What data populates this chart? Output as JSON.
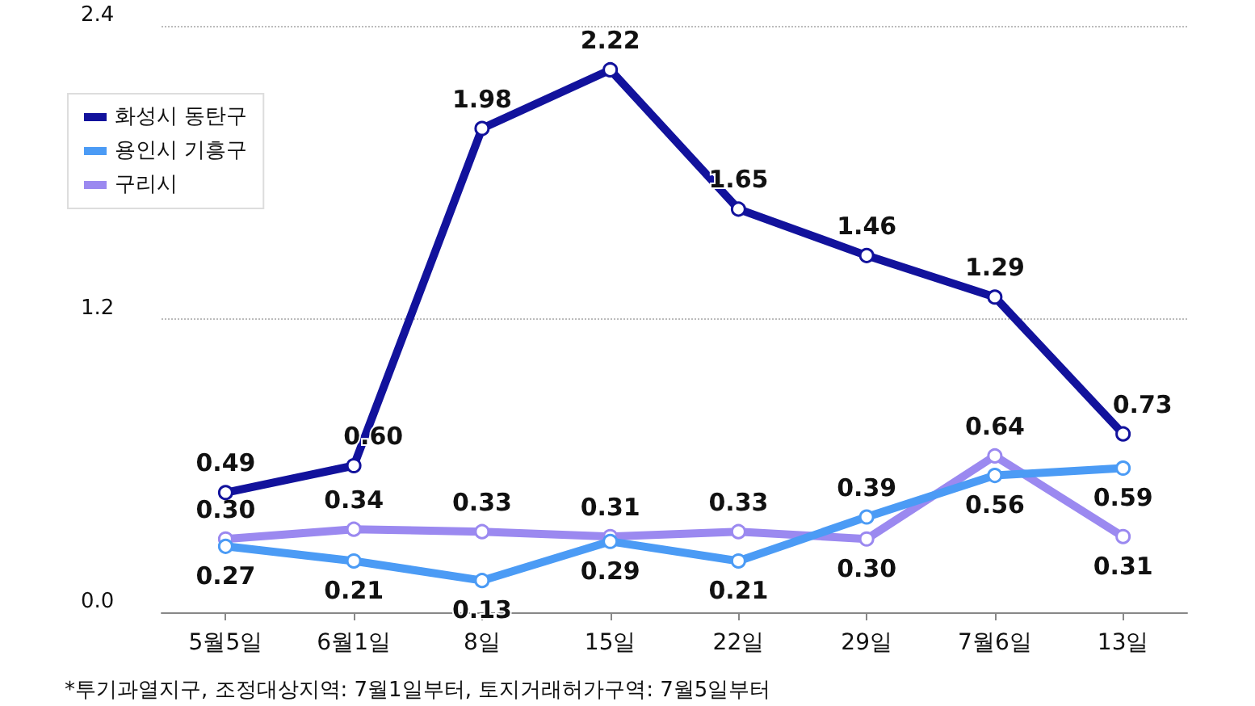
{
  "chart_data": {
    "type": "line",
    "categories": [
      "5월5일",
      "6월1일",
      "8일",
      "15일",
      "22일",
      "29일",
      "7월6일",
      "13일"
    ],
    "series": [
      {
        "name": "화성시 동탄구",
        "color": "#12129c",
        "values": [
          0.49,
          0.6,
          1.98,
          2.22,
          1.65,
          1.46,
          1.29,
          0.73
        ],
        "value_labels": [
          "0.49",
          "0.60",
          "1.98",
          "2.22",
          "1.65",
          "1.46",
          "1.29",
          "0.73"
        ]
      },
      {
        "name": "용인시 기흥구",
        "color": "#4b9bf5",
        "values": [
          0.27,
          0.21,
          0.13,
          0.29,
          0.21,
          0.39,
          0.56,
          0.59
        ],
        "value_labels": [
          "0.27",
          "0.21",
          "0.13",
          "0.29",
          "0.21",
          "0.39",
          "0.56",
          "0.59"
        ]
      },
      {
        "name": "구리시",
        "color": "#9b89f0",
        "values": [
          0.3,
          0.34,
          0.33,
          0.31,
          0.33,
          0.3,
          0.64,
          0.31
        ],
        "value_labels": [
          "0.30",
          "0.34",
          "0.33",
          "0.31",
          "0.33",
          "0.30",
          "0.64",
          "0.31"
        ]
      }
    ],
    "ylim": [
      0,
      2.4
    ],
    "yticks": [
      {
        "value": 0,
        "label": "0.0"
      },
      1.2,
      {
        "value": 2.4,
        "label": "2.4"
      }
    ],
    "grid": "y",
    "legend": "top left",
    "marker": "circle",
    "line_style": "solid",
    "annotations": [
      "*투기과열지구, 조정대상지역: 7월1일부터, 토지거래허가구역: 7월5일부터"
    ]
  }
}
